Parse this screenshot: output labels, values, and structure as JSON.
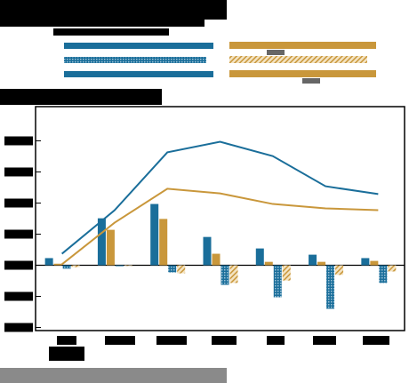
{
  "chart_data": {
    "type": "bar",
    "categories": [
      null,
      null,
      null,
      null,
      null,
      null,
      null
    ],
    "ylim": [
      -2.1,
      5.1
    ],
    "yticks": [
      -2,
      -1,
      0,
      1,
      2,
      3,
      4
    ],
    "series": [
      {
        "color": "#1a6e9a",
        "style": "solid",
        "values": [
          0.23,
          1.51,
          1.97,
          0.91,
          0.54,
          0.34,
          0.23
        ]
      },
      {
        "color": "#c9973b",
        "style": "solid",
        "values": [
          0.05,
          1.14,
          1.49,
          0.37,
          0.11,
          0.11,
          0.14
        ]
      },
      {
        "color": "#1a6e9a",
        "style": "hatched",
        "values": [
          -0.11,
          -0.03,
          -0.23,
          -0.63,
          -1.03,
          -1.4,
          -0.57
        ]
      },
      {
        "color": "#c9973b",
        "style": "hatched",
        "values": [
          -0.06,
          -0.02,
          -0.26,
          -0.57,
          -0.49,
          -0.31,
          -0.2
        ]
      },
      {
        "color": "#1a6e9a",
        "style": "line",
        "values": [
          0.37,
          1.77,
          3.63,
          3.97,
          3.51,
          2.54,
          2.29
        ]
      },
      {
        "color": "#c9973b",
        "style": "line",
        "values": [
          0.03,
          1.37,
          2.46,
          2.31,
          1.97,
          1.83,
          1.77
        ]
      }
    ]
  }
}
